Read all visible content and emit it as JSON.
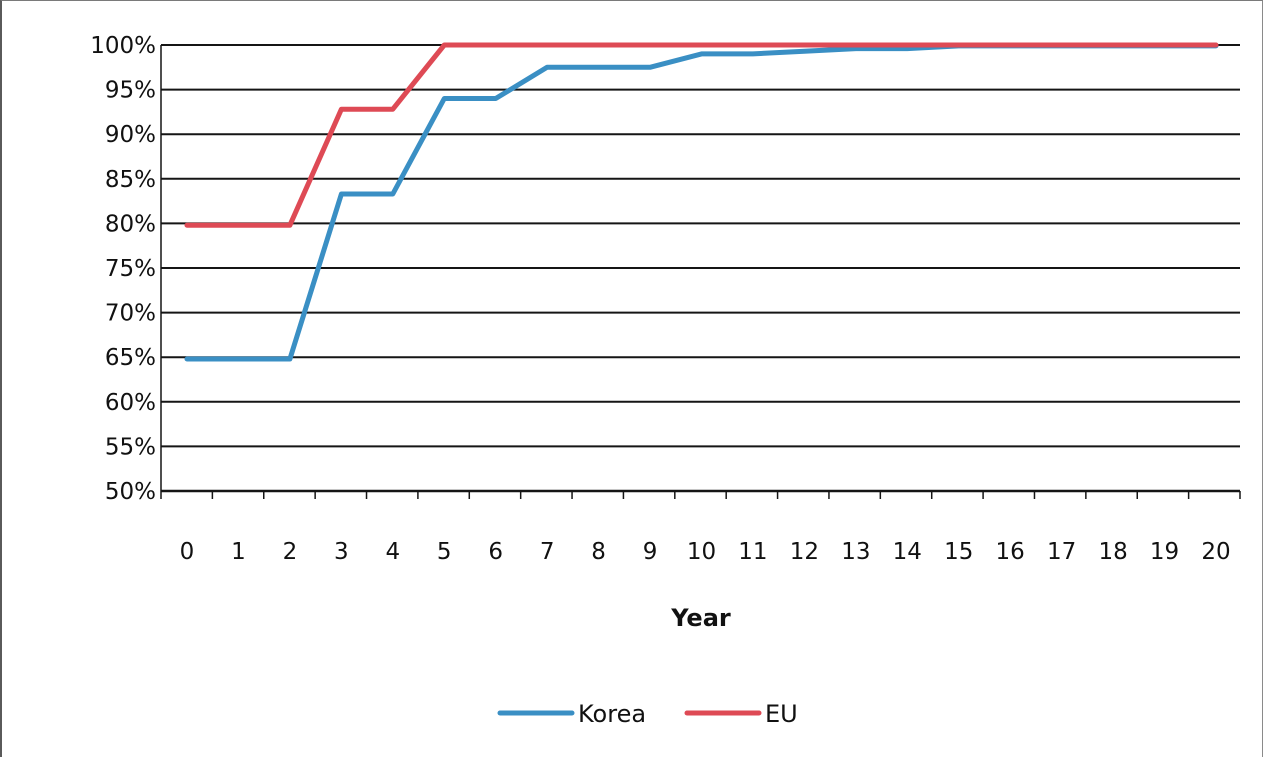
{
  "chart_data": {
    "type": "line",
    "title": "",
    "xlabel": "Year",
    "ylabel": "",
    "x": [
      0,
      1,
      2,
      3,
      4,
      5,
      6,
      7,
      8,
      9,
      10,
      11,
      12,
      13,
      14,
      15,
      16,
      17,
      18,
      19,
      20
    ],
    "x_tick_labels": [
      "0",
      "1",
      "2",
      "3",
      "4",
      "5",
      "6",
      "7",
      "8",
      "9",
      "10",
      "11",
      "12",
      "13",
      "14",
      "15",
      "16",
      "17",
      "18",
      "19",
      "20"
    ],
    "ylim": [
      50,
      100
    ],
    "y_ticks": [
      50,
      55,
      60,
      65,
      70,
      75,
      80,
      85,
      90,
      95,
      100
    ],
    "y_tick_labels": [
      "50%",
      "55%",
      "60%",
      "65%",
      "70%",
      "75%",
      "80%",
      "85%",
      "90%",
      "95%",
      "100%"
    ],
    "grid": true,
    "legend_placement": "bottom",
    "series": [
      {
        "name": "Korea",
        "color": "#3a8fc4",
        "values": [
          64.8,
          64.8,
          64.8,
          83.3,
          83.3,
          94.0,
          94.0,
          97.5,
          97.5,
          97.5,
          99.0,
          99.0,
          99.3,
          99.6,
          99.6,
          99.9,
          99.9,
          99.9,
          99.9,
          99.9,
          99.9
        ]
      },
      {
        "name": "EU",
        "color": "#de4a55",
        "values": [
          79.8,
          79.8,
          79.8,
          92.8,
          92.8,
          100,
          100,
          100,
          100,
          100,
          100,
          100,
          100,
          100,
          100,
          100,
          100,
          100,
          100,
          100,
          100
        ]
      }
    ]
  }
}
